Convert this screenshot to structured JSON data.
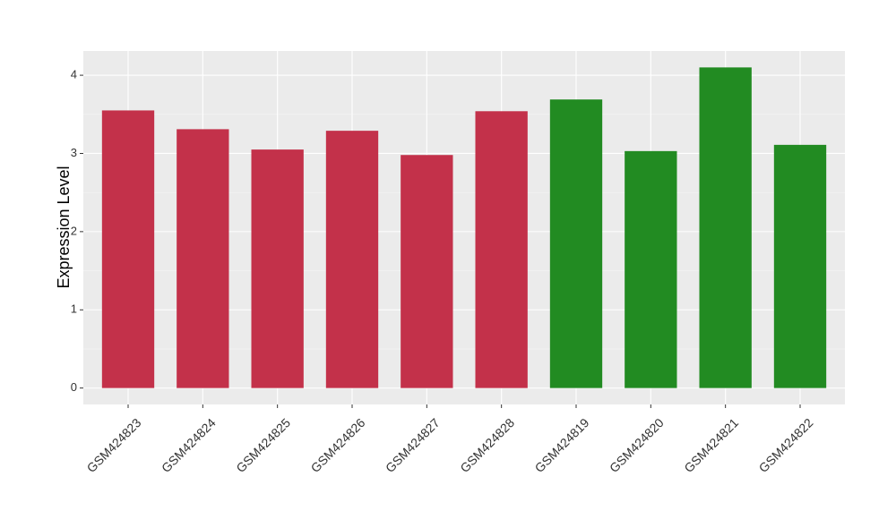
{
  "chart_data": {
    "type": "bar",
    "y_label": "Expression Level",
    "categories": [
      "GSM424823",
      "GSM424824",
      "GSM424825",
      "GSM424826",
      "GSM424827",
      "GSM424828",
      "GSM424819",
      "GSM424820",
      "GSM424821",
      "GSM424822"
    ],
    "values": [
      3.55,
      3.31,
      3.05,
      3.29,
      2.98,
      3.54,
      3.69,
      3.03,
      4.1,
      3.11
    ],
    "colors": [
      "#c3314a",
      "#c3314a",
      "#c3314a",
      "#c3314a",
      "#c3314a",
      "#c3314a",
      "#228b22",
      "#228b22",
      "#228b22",
      "#228b22"
    ],
    "ylim": [
      -0.21,
      4.31
    ],
    "yticks": [
      0,
      1,
      2,
      3,
      4
    ],
    "grid": true
  }
}
